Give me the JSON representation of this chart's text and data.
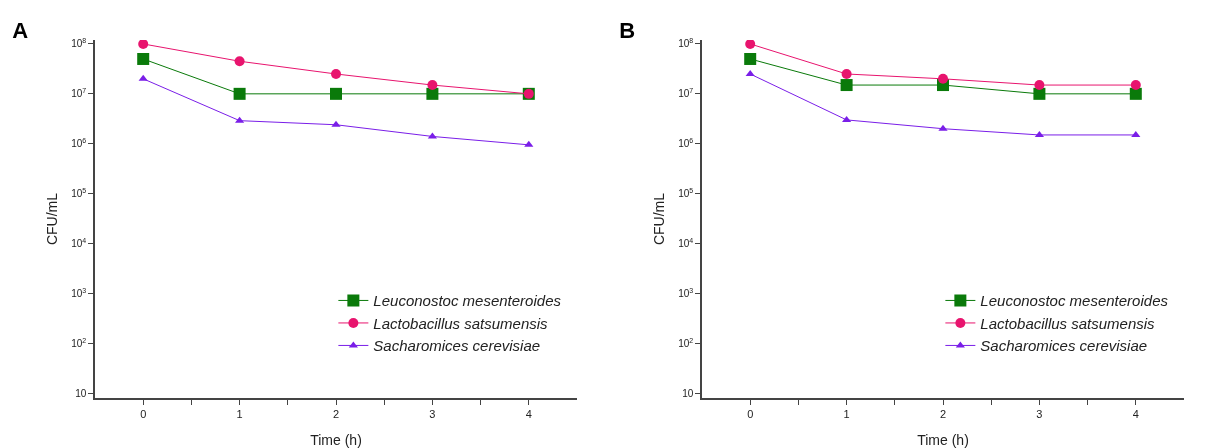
{
  "chart_data": [
    {
      "type": "line",
      "title": "A",
      "xlabel": "Time (h)",
      "ylabel": "CFU/mL",
      "x": [
        0,
        1,
        2,
        3,
        4
      ],
      "series": [
        {
          "name": "Leuconostoc mesenteroides",
          "color": "#0a7a0a",
          "marker": "square",
          "values": [
            50000000,
            10000000,
            10000000,
            10000000,
            10000000
          ]
        },
        {
          "name": "Lactobacillus satsumensis",
          "color": "#e8146e",
          "marker": "circle",
          "values": [
            100000000,
            45000000,
            25000000,
            15000000,
            10000000
          ]
        },
        {
          "name": "Sacharomices cerevisiae",
          "color": "#7a1ee8",
          "marker": "triangle",
          "values": [
            20000000,
            2900000,
            2400000,
            1400000,
            950000
          ]
        }
      ],
      "log": "y",
      "xlim": [
        -0.5,
        4.5
      ],
      "xticks": [
        0,
        {
          "value": 0.5,
          "label": null
        },
        1,
        {
          "value": 1.5,
          "label": null
        },
        2,
        {
          "value": 2.5,
          "label": null
        },
        3,
        {
          "value": 3.5,
          "label": null
        },
        4
      ],
      "ylim": [
        8,
        120000000
      ],
      "yticks": [
        10,
        {
          "value": 100,
          "label": "10$^{2}$"
        },
        {
          "value": 1000,
          "label": "10$^{3}$"
        },
        {
          "value": 10000,
          "label": "10$^{4}$"
        },
        {
          "value": 100000,
          "label": "10$^{5}$"
        },
        {
          "value": 1000000,
          "label": "10$^{6}$"
        },
        {
          "value": 10000000,
          "label": "10$^{7}$"
        },
        {
          "value": 100000000,
          "label": "10$^{8}$"
        }
      ],
      "grid": false,
      "legend": "bottom right",
      "line_style": "solid"
    },
    {
      "type": "line",
      "title": "B",
      "xlabel": "Time (h)",
      "ylabel": "CFU/mL",
      "x": [
        0,
        1,
        2,
        3,
        4
      ],
      "series": [
        {
          "name": "Leuconostoc mesenteroides",
          "color": "#0a7a0a",
          "marker": "square",
          "values": [
            50000000,
            15000000,
            15000000,
            10000000,
            10000000
          ]
        },
        {
          "name": "Lactobacillus satsumensis",
          "color": "#e8146e",
          "marker": "circle",
          "values": [
            100000000,
            25000000,
            20000000,
            15000000,
            15000000
          ]
        },
        {
          "name": "Sacharomices cerevisiae",
          "color": "#7a1ee8",
          "marker": "triangle",
          "values": [
            25000000,
            3000000,
            2000000,
            1500000,
            1500000
          ]
        }
      ],
      "log": "y",
      "xlim": [
        -0.5,
        4.5
      ],
      "xticks": [
        0,
        {
          "value": 0.5,
          "label": null
        },
        1,
        {
          "value": 1.5,
          "label": null
        },
        2,
        {
          "value": 2.5,
          "label": null
        },
        3,
        {
          "value": 3.5,
          "label": null
        },
        4
      ],
      "ylim": [
        8,
        120000000
      ],
      "yticks": [
        10,
        {
          "value": 100,
          "label": "10$^{2}$"
        },
        {
          "value": 1000,
          "label": "10$^{3}$"
        },
        {
          "value": 10000,
          "label": "10$^{4}$"
        },
        {
          "value": 100000,
          "label": "10$^{5}$"
        },
        {
          "value": 1000000,
          "label": "10$^{6}$"
        },
        {
          "value": 10000000,
          "label": "10$^{7}$"
        },
        {
          "value": 100000000,
          "label": "10$^{8}$"
        }
      ],
      "grid": false,
      "legend": "bottom right",
      "line_style": "solid"
    }
  ]
}
